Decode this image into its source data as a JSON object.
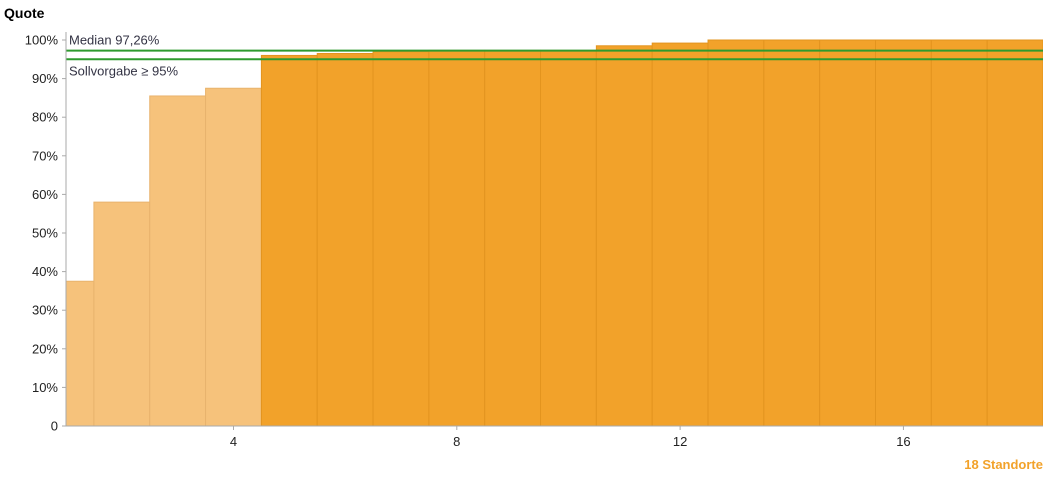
{
  "chart_data": {
    "type": "bar",
    "ylabel": "Quote",
    "xlabel": "",
    "total_label": "18 Standorte",
    "categories": [
      1,
      2,
      3,
      4,
      5,
      6,
      7,
      8,
      9,
      10,
      11,
      12,
      13,
      14,
      15,
      16,
      17,
      18
    ],
    "values": [
      37.5,
      58.0,
      85.5,
      87.5,
      96.0,
      96.5,
      97.0,
      97.3,
      97.3,
      97.3,
      98.5,
      99.2,
      100,
      100,
      100,
      100,
      100,
      100
    ],
    "highlight": [
      false,
      false,
      false,
      false,
      true,
      true,
      true,
      true,
      true,
      true,
      true,
      true,
      true,
      true,
      true,
      true,
      true,
      true
    ],
    "ylim": [
      0,
      100
    ],
    "yticks": [
      {
        "value": 0,
        "label": "0"
      },
      {
        "value": 10,
        "label": "10%"
      },
      {
        "value": 20,
        "label": "20%"
      },
      {
        "value": 30,
        "label": "30%"
      },
      {
        "value": 40,
        "label": "40%"
      },
      {
        "value": 50,
        "label": "50%"
      },
      {
        "value": 60,
        "label": "60%"
      },
      {
        "value": 70,
        "label": "70%"
      },
      {
        "value": 80,
        "label": "80%"
      },
      {
        "value": 90,
        "label": "90%"
      },
      {
        "value": 100,
        "label": "100%"
      }
    ],
    "xticks": [
      {
        "value": 4,
        "label": "4"
      },
      {
        "value": 8,
        "label": "8"
      },
      {
        "value": 12,
        "label": "12"
      },
      {
        "value": 16,
        "label": "16"
      }
    ],
    "reference_lines": [
      {
        "name": "median",
        "value": 97.26,
        "label": "Median 97,26%",
        "label_side": "above"
      },
      {
        "name": "target",
        "value": 95,
        "label": "Sollvorgabe ≥ 95%",
        "label_side": "below"
      }
    ],
    "grid": false,
    "colors": {
      "bar_light": "#f6c27b",
      "bar_dark": "#f2a22a",
      "bar_edge_light": "#e8b36d",
      "bar_edge_dark": "#e3941f",
      "reference_line": "#2e9a2e",
      "total_label": "#f2a22a",
      "axis": "#aaaaaa",
      "text": "#222222",
      "ref_text": "#333344"
    }
  }
}
